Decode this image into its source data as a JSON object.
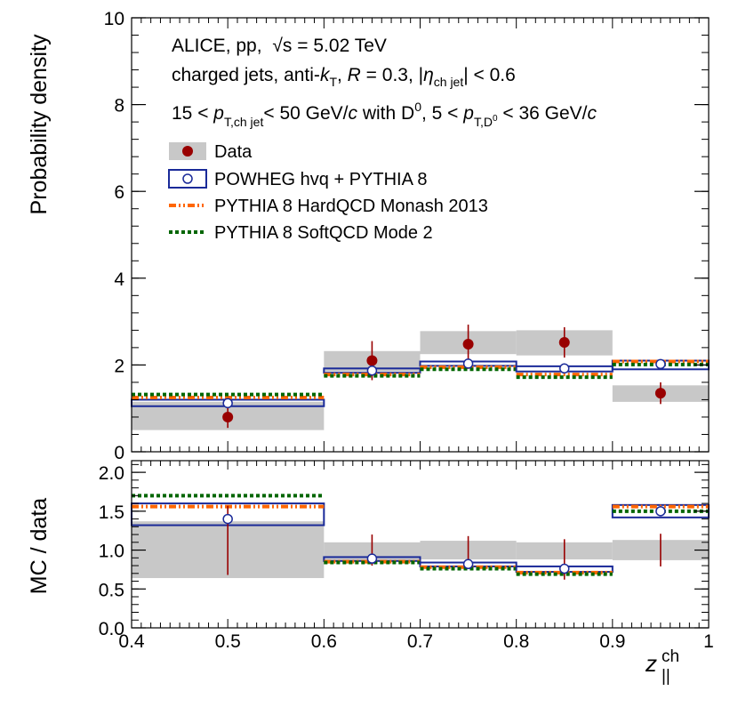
{
  "chart_data": {
    "type": "histogram-comparison",
    "bins": [
      0.4,
      0.6,
      0.7,
      0.8,
      0.9,
      1.0
    ],
    "centers": [
      0.5,
      0.65,
      0.75,
      0.85,
      0.95
    ],
    "colors": {
      "data": "#990000",
      "sys_band": "#c8c8c8",
      "powheg": "#1a2a99",
      "pythia_hard": "#ff6600",
      "pythia_soft": "#006600"
    },
    "annotations": {
      "line1_pre": "ALICE, pp,",
      "line1_sqrt": "√s",
      "line1_post": " = 5.02 TeV",
      "line2_pre": "charged jets, anti-",
      "line2_k": "k",
      "line2_T": "T",
      "line2_mid": ", ",
      "line2_R": "R",
      "line2_mid2": " = 0.3, |",
      "line2_eta": "η",
      "line2_eta_sub": "ch jet",
      "line2_post": "| < 0.6",
      "line3_a": "15 < ",
      "line3_p1": "p",
      "line3_p1_sub": "T,ch jet",
      "line3_b": "< 50 GeV/",
      "line3_c1": "c",
      "line3_c_text": " with D",
      "line3_D0_sup": "0",
      "line3_d": ", 5 < ",
      "line3_p2": "p",
      "line3_p2_sub": "T,D",
      "line3_p2_sub_sup": "0",
      "line3_e": " < 36 GeV/",
      "line3_c2": "c"
    },
    "legend": [
      {
        "key": "data",
        "label": "Data"
      },
      {
        "key": "powheg",
        "label": "POWHEG hvq + PYTHIA 8"
      },
      {
        "key": "pythia_hard",
        "label": "PYTHIA 8 HardQCD Monash 2013"
      },
      {
        "key": "pythia_soft",
        "label": "PYTHIA 8 SoftQCD Mode 2"
      }
    ],
    "top": {
      "ylabel": "Probability density",
      "ylim": [
        0,
        10
      ],
      "yticks": [
        "0",
        "2",
        "4",
        "6",
        "8",
        "10"
      ],
      "data": {
        "values": [
          0.8,
          2.1,
          2.48,
          2.52,
          1.35
        ],
        "stat_err": [
          0.25,
          0.45,
          0.45,
          0.35,
          0.25
        ]
      },
      "sys_band": {
        "low": [
          0.5,
          1.85,
          2.25,
          2.22,
          1.15
        ],
        "high": [
          1.15,
          2.32,
          2.78,
          2.8,
          1.53
        ]
      },
      "powheg": {
        "values": [
          1.12,
          1.87,
          2.03,
          1.92,
          2.02
        ],
        "box_low": [
          1.05,
          1.82,
          1.98,
          1.85,
          1.9
        ],
        "box_high": [
          1.2,
          1.92,
          2.08,
          1.97,
          2.1
        ]
      },
      "pythia_hard": {
        "values": [
          1.25,
          1.78,
          1.95,
          1.78,
          2.08
        ]
      },
      "pythia_soft": {
        "values": [
          1.32,
          1.75,
          1.9,
          1.72,
          2.01
        ]
      }
    },
    "bottom": {
      "ylabel": "MC / data",
      "xlabel": "z",
      "xlabel_sup": "ch",
      "xlabel_sub": "||",
      "ylim": [
        0,
        2.15
      ],
      "yticks": [
        "0.0",
        "0.5",
        "1.0",
        "1.5",
        "2.0"
      ],
      "xticks": [
        "0.4",
        "0.5",
        "0.6",
        "0.7",
        "0.8",
        "0.9",
        "1"
      ],
      "data_band": {
        "low": [
          0.64,
          0.87,
          0.88,
          0.88,
          0.87
        ],
        "high": [
          1.37,
          1.1,
          1.12,
          1.1,
          1.13
        ]
      },
      "data_err": {
        "low": [
          0.68,
          0.8,
          0.79,
          0.62,
          0.79
        ],
        "high": [
          1.57,
          1.2,
          1.18,
          1.14,
          1.21
        ]
      },
      "powheg": {
        "values": [
          1.4,
          0.89,
          0.82,
          0.76,
          1.5
        ],
        "box_low": [
          1.32,
          0.86,
          0.79,
          0.72,
          1.42
        ],
        "box_high": [
          1.6,
          0.91,
          0.84,
          0.79,
          1.58
        ]
      },
      "pythia_hard": {
        "values": [
          1.56,
          0.85,
          0.78,
          0.71,
          1.56
        ]
      },
      "pythia_soft": {
        "values": [
          1.7,
          0.84,
          0.76,
          0.69,
          1.5
        ]
      }
    }
  }
}
